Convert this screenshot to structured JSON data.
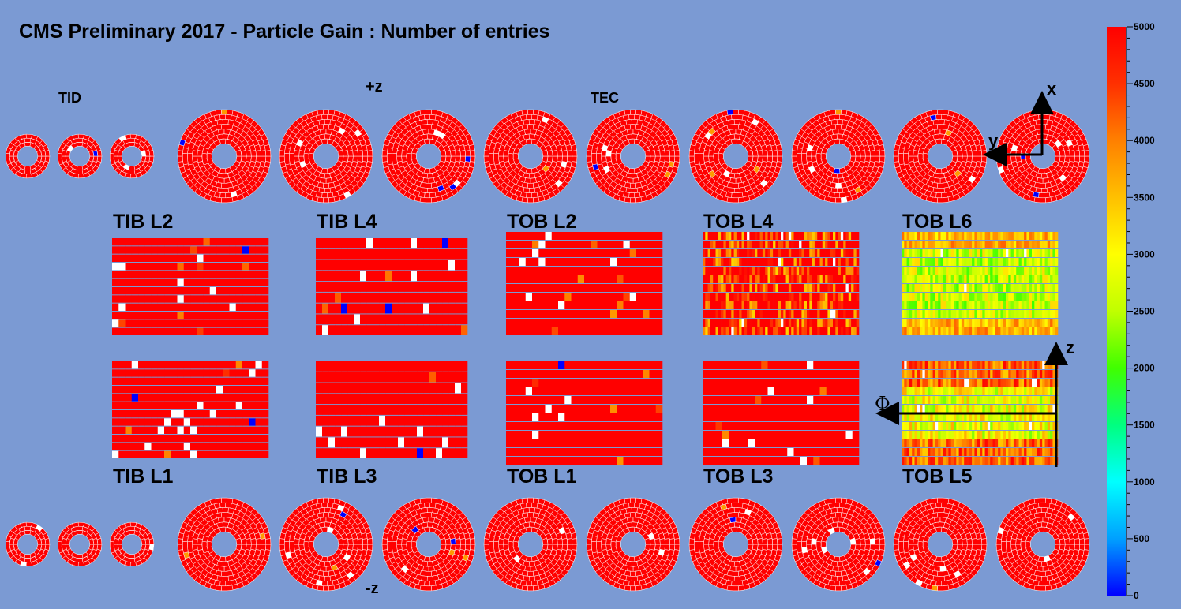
{
  "title": "CMS Preliminary 2017  -  Particle Gain : Number of entries",
  "labels": {
    "tid": "TID",
    "plus_z": "+z",
    "tec": "TEC",
    "minus_z": "-z",
    "axis_x": "x",
    "axis_y": "y",
    "axis_z": "z",
    "axis_phi": "Φ"
  },
  "chart_data": {
    "type": "heatmap",
    "title": "CMS Preliminary 2017  -  Particle Gain : Number of entries",
    "colorbar": {
      "range": [
        0,
        5000
      ],
      "ticks": [
        0,
        500,
        1000,
        1500,
        2000,
        2500,
        3000,
        3500,
        4000,
        4500,
        5000
      ],
      "palette": [
        "#0000ff",
        "#00a0ff",
        "#00ffff",
        "#00ff80",
        "#40ff00",
        "#c0ff00",
        "#ffff00",
        "#ffc000",
        "#ff8000",
        "#ff3000",
        "#ff0000"
      ]
    },
    "barrel_layers": [
      {
        "name": "TIB L2",
        "side": "top",
        "typical_entries": 5000
      },
      {
        "name": "TIB L4",
        "side": "top",
        "typical_entries": 5000
      },
      {
        "name": "TOB L2",
        "side": "top",
        "typical_entries": 5000
      },
      {
        "name": "TOB L4",
        "side": "top",
        "typical_entries": 4500
      },
      {
        "name": "TOB L6",
        "side": "top",
        "typical_entries": 3000
      },
      {
        "name": "TIB L1",
        "side": "bottom",
        "typical_entries": 5000
      },
      {
        "name": "TIB L3",
        "side": "bottom",
        "typical_entries": 5000
      },
      {
        "name": "TOB L1",
        "side": "bottom",
        "typical_entries": 5000
      },
      {
        "name": "TOB L3",
        "side": "bottom",
        "typical_entries": 5000
      },
      {
        "name": "TOB L5",
        "side": "bottom",
        "typical_entries": 3500
      }
    ],
    "endcap_disks": {
      "plus_z": {
        "tid_disks": 3,
        "tec_disks": 9,
        "typical_entries": 5000
      },
      "minus_z": {
        "tid_disks": 3,
        "tec_disks": 9,
        "typical_entries": 5000
      }
    },
    "empty_modules_color": "#ffffff"
  }
}
